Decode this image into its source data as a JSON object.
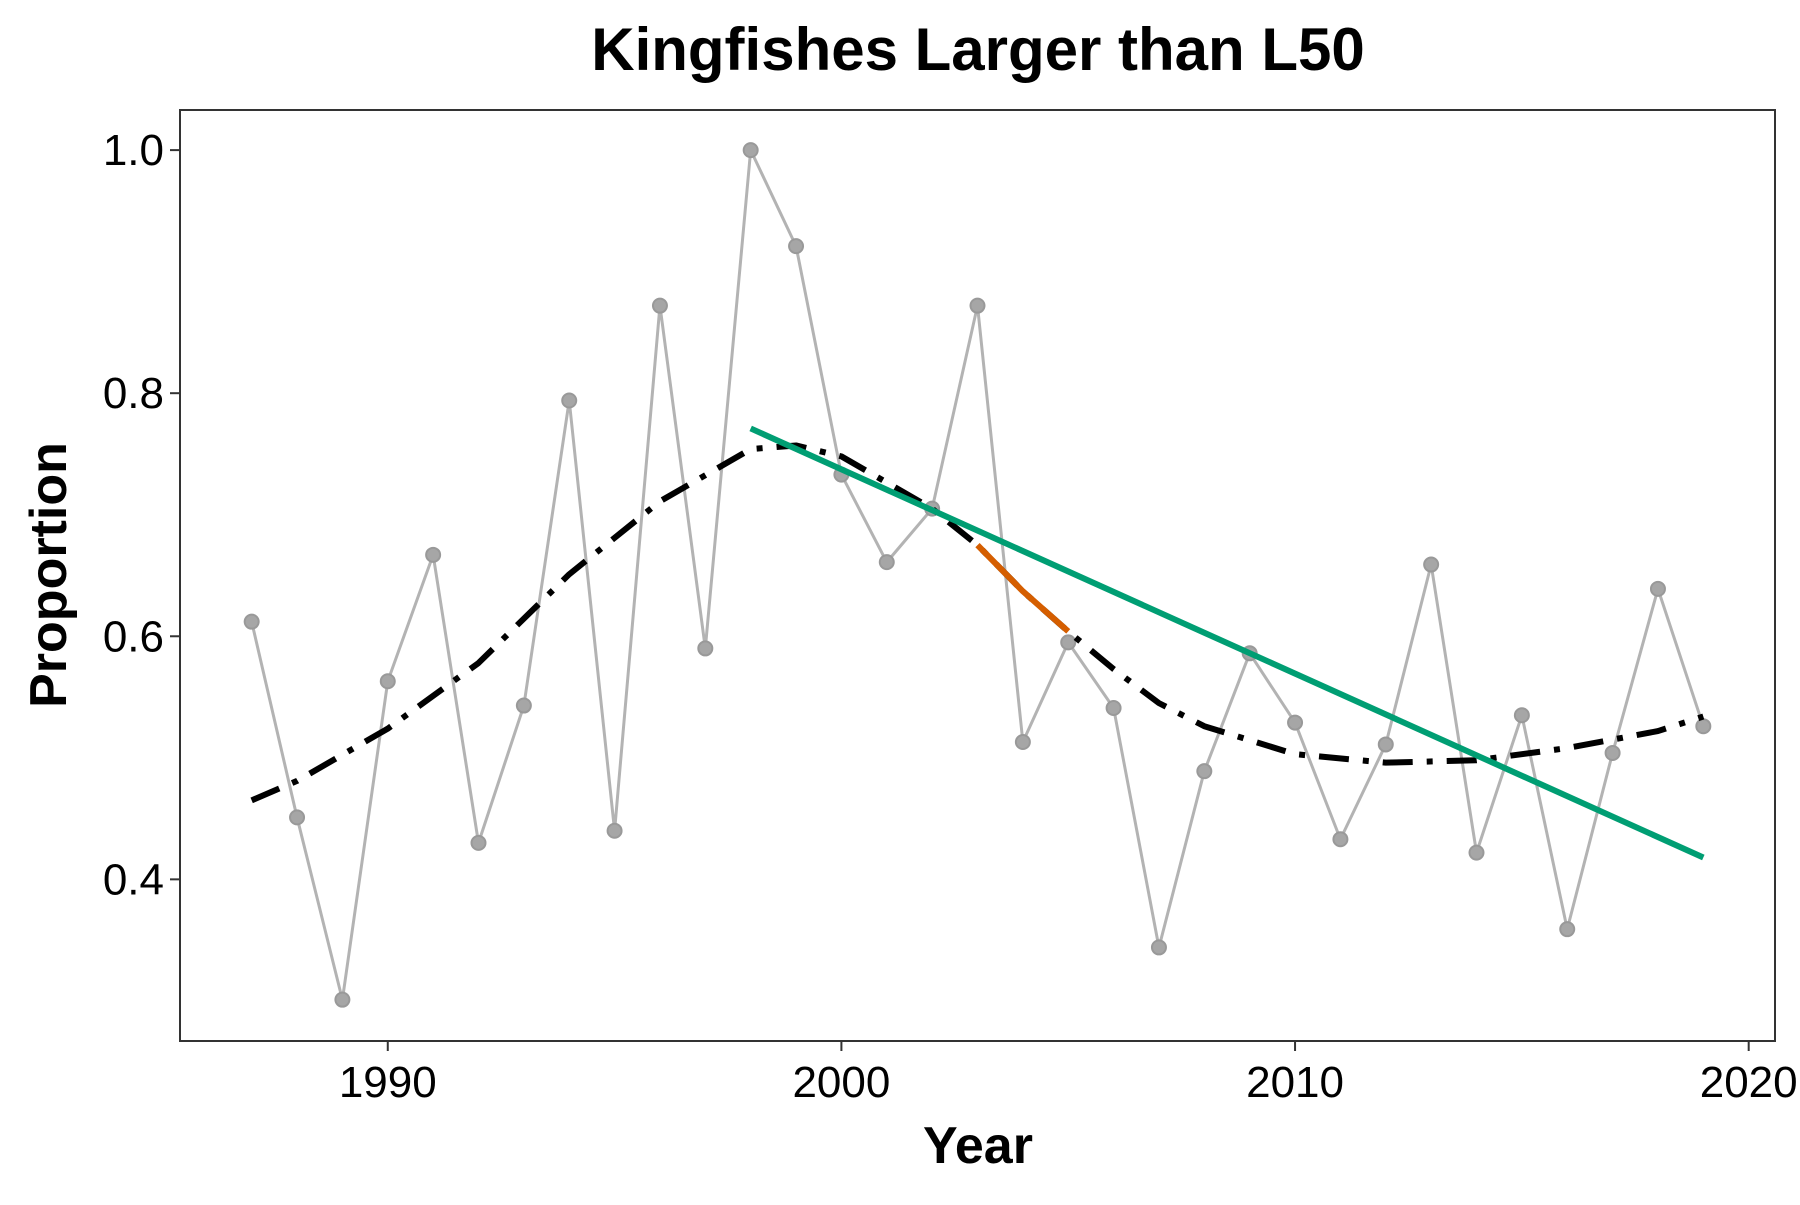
{
  "chart_data": {
    "type": "line",
    "title": "Kingfishes Larger than L50",
    "x_label": "Year",
    "y_label": "Proportion",
    "xlim": [
      1985.42,
      2020.58
    ],
    "xticks": [
      1990,
      2000,
      2010,
      2020
    ],
    "ylim": [
      0.267,
      1.033
    ],
    "yticks": [
      {
        "value": 0.4,
        "label": "0.4"
      },
      {
        "value": 0.6,
        "label": "0.6"
      },
      {
        "value": 0.8,
        "label": "0.8"
      },
      {
        "value": 1.0,
        "label": "1.0"
      }
    ],
    "grid": false,
    "series": [
      {
        "color": "#b3b3b3",
        "line_style": "solid",
        "markers": true,
        "width": 3,
        "x": [
          1987,
          1988,
          1989,
          1990,
          1991,
          1992,
          1993,
          1994,
          1995,
          1996,
          1997,
          1998,
          1999,
          2000,
          2001,
          2002,
          2003,
          2004,
          2005,
          2006,
          2007,
          2008,
          2009,
          2010,
          2011,
          2012,
          2013,
          2014,
          2015,
          2016,
          2017,
          2018,
          2019
        ],
        "values": [
          0.612,
          0.451,
          0.301,
          0.563,
          0.667,
          0.43,
          0.543,
          0.794,
          0.44,
          0.872,
          0.59,
          1.0,
          0.921,
          0.733,
          0.661,
          0.705,
          0.872,
          0.513,
          0.595,
          0.541,
          0.344,
          0.489,
          0.586,
          0.529,
          0.433,
          0.511,
          0.659,
          0.422,
          0.535,
          0.359,
          0.504,
          0.639,
          0.526
        ]
      },
      {
        "color": "#000000",
        "line_style": "dashdot",
        "markers": false,
        "width": 6,
        "x": [
          1987,
          1988,
          1990,
          1992,
          1994,
          1996,
          1998,
          1999,
          2000,
          2002,
          2003,
          2004,
          2005,
          2006,
          2007,
          2008,
          2010,
          2012,
          2014,
          2016,
          2018,
          2019
        ],
        "values": [
          0.465,
          0.481,
          0.524,
          0.578,
          0.651,
          0.711,
          0.754,
          0.757,
          0.748,
          0.705,
          0.675,
          0.637,
          0.604,
          0.573,
          0.545,
          0.526,
          0.503,
          0.496,
          0.498,
          0.508,
          0.522,
          0.534
        ]
      },
      {
        "color": "#d55e00",
        "line_style": "solid",
        "markers": false,
        "width": 6,
        "x": [
          2003,
          2004,
          2005
        ],
        "values": [
          0.675,
          0.637,
          0.604
        ]
      },
      {
        "color": "#009e73",
        "line_style": "solid",
        "markers": false,
        "width": 6,
        "x": [
          1998,
          2019
        ],
        "values": [
          0.771,
          0.418
        ]
      }
    ]
  }
}
